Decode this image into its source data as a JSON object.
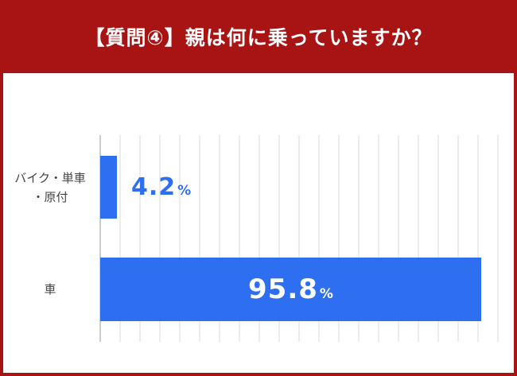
{
  "title": "【質問④】親は何に乗っていますか？",
  "colors": {
    "header_bg": "#a81414",
    "bar": "#2e6ff2",
    "grid": "#d9d9d9",
    "panel_bg": "#ffffff"
  },
  "chart_data": {
    "type": "bar",
    "orientation": "horizontal",
    "categories": [
      "バイク・単車・原付",
      "車"
    ],
    "category_lines": [
      [
        "バイク・単車",
        "・原付"
      ],
      [
        "車"
      ]
    ],
    "values": [
      4.2,
      95.8
    ],
    "value_labels": [
      "4.2",
      "95.8"
    ],
    "unit": "%",
    "xlim": [
      0,
      100
    ],
    "grid": true,
    "legend": "none"
  }
}
